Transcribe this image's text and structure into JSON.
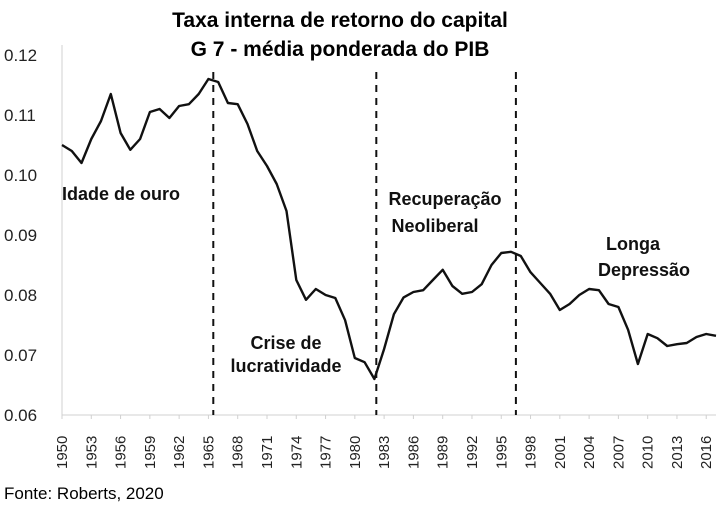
{
  "chart_data": {
    "type": "line",
    "title": [
      "Taxa interna de retorno do capital",
      "G 7 - média ponderada do PIB"
    ],
    "xlabel": "",
    "ylabel": "",
    "ylim": [
      0.06,
      0.12
    ],
    "yticks": [
      "0.06",
      "0.07",
      "0.08",
      "0.09",
      "0.10",
      "0.11",
      "0.12"
    ],
    "xticks": [
      "1950",
      "1953",
      "1956",
      "1959",
      "1962",
      "1965",
      "1968",
      "1971",
      "1974",
      "1977",
      "1980",
      "1983",
      "1986",
      "1989",
      "1992",
      "1995",
      "1998",
      "2001",
      "2004",
      "2007",
      "2010",
      "2013",
      "2016"
    ],
    "xlim": [
      1950,
      2017
    ],
    "series": [
      {
        "name": "Taxa interna de retorno do capital",
        "x": [
          1950,
          1951,
          1952,
          1953,
          1954,
          1955,
          1956,
          1957,
          1958,
          1959,
          1960,
          1961,
          1962,
          1963,
          1964,
          1965,
          1966,
          1967,
          1968,
          1969,
          1970,
          1971,
          1972,
          1973,
          1974,
          1975,
          1976,
          1977,
          1978,
          1979,
          1980,
          1981,
          1982,
          1983,
          1984,
          1985,
          1986,
          1987,
          1988,
          1989,
          1990,
          1991,
          1992,
          1993,
          1994,
          1995,
          1996,
          1997,
          1998,
          1999,
          2000,
          2001,
          2002,
          2003,
          2004,
          2005,
          2006,
          2007,
          2008,
          2009,
          2010,
          2011,
          2012,
          2013,
          2014,
          2015,
          2016,
          2017
        ],
        "values": [
          0.105,
          0.104,
          0.102,
          0.106,
          0.109,
          0.1135,
          0.107,
          0.1042,
          0.106,
          0.1105,
          0.111,
          0.1095,
          0.1115,
          0.1118,
          0.1135,
          0.116,
          0.1155,
          0.112,
          0.1118,
          0.1085,
          0.104,
          0.1015,
          0.0985,
          0.094,
          0.0825,
          0.0792,
          0.081,
          0.08,
          0.0795,
          0.0758,
          0.0695,
          0.0688,
          0.066,
          0.071,
          0.0768,
          0.0796,
          0.0805,
          0.0808,
          0.0825,
          0.0842,
          0.0815,
          0.0802,
          0.0805,
          0.0818,
          0.085,
          0.087,
          0.0872,
          0.0865,
          0.0838,
          0.082,
          0.0802,
          0.0775,
          0.0785,
          0.08,
          0.081,
          0.0808,
          0.0785,
          0.078,
          0.0742,
          0.0685,
          0.0735,
          0.0728,
          0.0715,
          0.0718,
          0.072,
          0.073,
          0.0735,
          0.0732
        ]
      }
    ],
    "dividers": [
      1965.5,
      1982.2,
      1996.5
    ],
    "annotations": [
      {
        "id": "idade",
        "lines": [
          "Idade de ouro"
        ]
      },
      {
        "id": "crise",
        "lines": [
          "Crise de",
          "lucratividade"
        ]
      },
      {
        "id": "recuperacao",
        "lines": [
          "Recuperação",
          "Neoliberal"
        ]
      },
      {
        "id": "longa",
        "lines": [
          "Longa",
          "Depressão"
        ]
      }
    ],
    "grid": false,
    "legend": "none"
  },
  "source": "Fonte: Roberts, 2020"
}
